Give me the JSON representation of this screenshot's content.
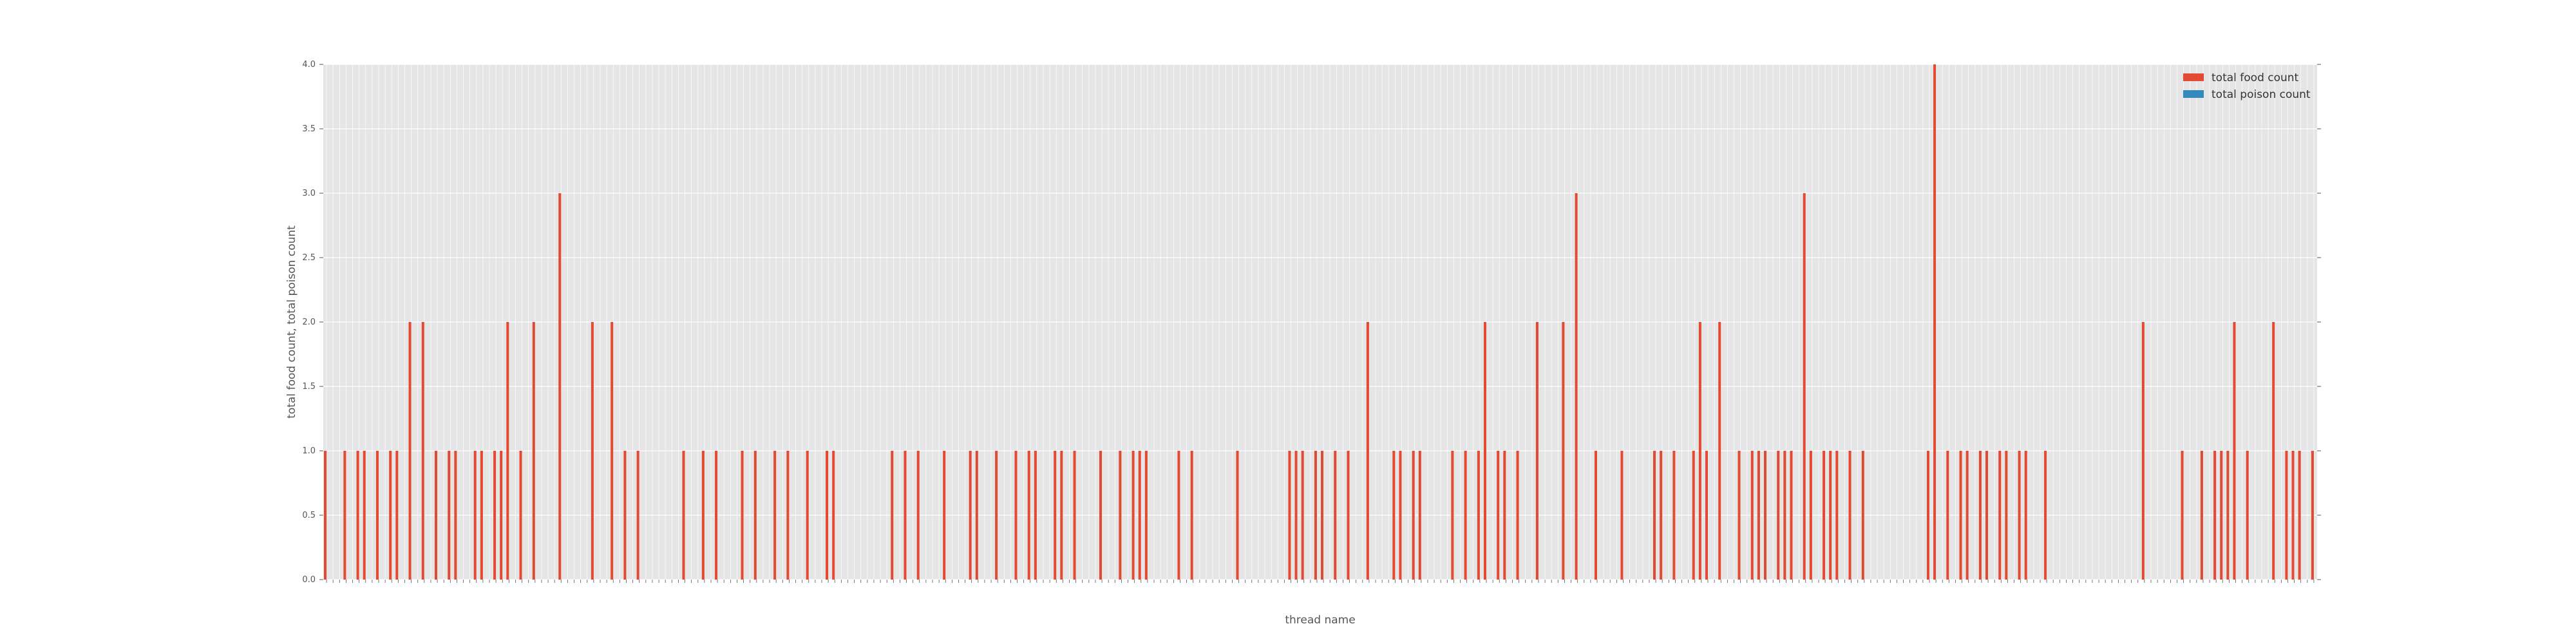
{
  "chart_data": {
    "type": "bar",
    "xlabel": "thread name",
    "ylabel": "total food count, total poison count",
    "ylim": [
      0,
      4.0
    ],
    "yticks": [
      "0.0",
      "0.5",
      "1.0",
      "1.5",
      "2.0",
      "2.5",
      "3.0",
      "3.5",
      "4.0"
    ],
    "grid": true,
    "legend_position": "top-right",
    "category_count": 306,
    "category_ticks_note": "x tick labels are dense rotated numeric thread names (illegible at this resolution)",
    "series": [
      {
        "name": "total food count",
        "color": "#E24A33",
        "nonzero": [
          [
            0,
            1
          ],
          [
            3,
            1
          ],
          [
            5,
            1
          ],
          [
            6,
            1
          ],
          [
            8,
            1
          ],
          [
            10,
            1
          ],
          [
            11,
            1
          ],
          [
            13,
            2
          ],
          [
            15,
            2
          ],
          [
            17,
            1
          ],
          [
            19,
            1
          ],
          [
            20,
            1
          ],
          [
            23,
            1
          ],
          [
            24,
            1
          ],
          [
            26,
            1
          ],
          [
            27,
            1
          ],
          [
            28,
            2
          ],
          [
            30,
            1
          ],
          [
            32,
            2
          ],
          [
            36,
            3
          ],
          [
            41,
            2
          ],
          [
            44,
            2
          ],
          [
            46,
            1
          ],
          [
            48,
            1
          ],
          [
            55,
            1
          ],
          [
            58,
            1
          ],
          [
            60,
            1
          ],
          [
            64,
            1
          ],
          [
            66,
            1
          ],
          [
            69,
            1
          ],
          [
            71,
            1
          ],
          [
            74,
            1
          ],
          [
            77,
            1
          ],
          [
            78,
            1
          ],
          [
            87,
            1
          ],
          [
            89,
            1
          ],
          [
            91,
            1
          ],
          [
            95,
            1
          ],
          [
            99,
            1
          ],
          [
            100,
            1
          ],
          [
            103,
            1
          ],
          [
            106,
            1
          ],
          [
            108,
            1
          ],
          [
            109,
            1
          ],
          [
            112,
            1
          ],
          [
            113,
            1
          ],
          [
            115,
            1
          ],
          [
            119,
            1
          ],
          [
            122,
            1
          ],
          [
            124,
            1
          ],
          [
            125,
            1
          ],
          [
            126,
            1
          ],
          [
            131,
            1
          ],
          [
            133,
            1
          ],
          [
            140,
            1
          ],
          [
            148,
            1
          ],
          [
            149,
            1
          ],
          [
            150,
            1
          ],
          [
            152,
            1
          ],
          [
            153,
            1
          ],
          [
            155,
            1
          ],
          [
            157,
            1
          ],
          [
            160,
            2
          ],
          [
            164,
            1
          ],
          [
            165,
            1
          ],
          [
            167,
            1
          ],
          [
            168,
            1
          ],
          [
            173,
            1
          ],
          [
            175,
            1
          ],
          [
            177,
            1
          ],
          [
            178,
            2
          ],
          [
            180,
            1
          ],
          [
            181,
            1
          ],
          [
            183,
            1
          ],
          [
            186,
            2
          ],
          [
            190,
            2
          ],
          [
            192,
            3
          ],
          [
            195,
            1
          ],
          [
            199,
            1
          ],
          [
            204,
            1
          ],
          [
            205,
            1
          ],
          [
            207,
            1
          ],
          [
            210,
            1
          ],
          [
            211,
            2
          ],
          [
            212,
            1
          ],
          [
            214,
            2
          ],
          [
            217,
            1
          ],
          [
            219,
            1
          ],
          [
            220,
            1
          ],
          [
            221,
            1
          ],
          [
            223,
            1
          ],
          [
            224,
            1
          ],
          [
            225,
            1
          ],
          [
            227,
            3
          ],
          [
            228,
            1
          ],
          [
            230,
            1
          ],
          [
            231,
            1
          ],
          [
            232,
            1
          ],
          [
            234,
            1
          ],
          [
            236,
            1
          ],
          [
            246,
            1
          ],
          [
            247,
            4
          ],
          [
            249,
            1
          ],
          [
            251,
            1
          ],
          [
            252,
            1
          ],
          [
            254,
            1
          ],
          [
            255,
            1
          ],
          [
            257,
            1
          ],
          [
            258,
            1
          ],
          [
            260,
            1
          ],
          [
            261,
            1
          ],
          [
            264,
            1
          ],
          [
            279,
            2
          ],
          [
            285,
            1
          ],
          [
            288,
            1
          ],
          [
            290,
            1
          ],
          [
            291,
            1
          ],
          [
            292,
            1
          ],
          [
            293,
            2
          ],
          [
            295,
            1
          ],
          [
            299,
            2
          ],
          [
            301,
            1
          ],
          [
            302,
            1
          ],
          [
            303,
            1
          ],
          [
            305,
            1
          ]
        ]
      },
      {
        "name": "total poison count",
        "color": "#348ABD",
        "nonzero": []
      }
    ]
  }
}
